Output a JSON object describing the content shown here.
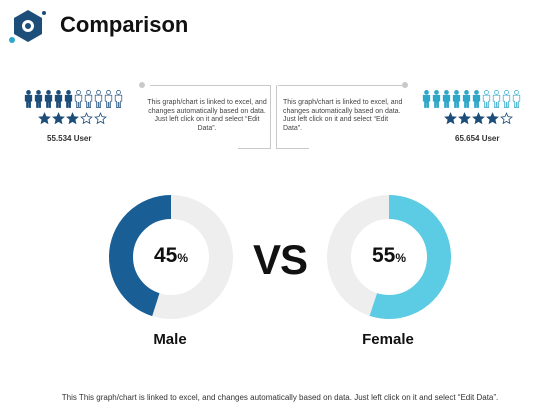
{
  "header": {
    "title": "Comparison"
  },
  "colors": {
    "male": "#1a5e96",
    "female": "#5ccbe4",
    "ring_bg": "#eeeeee",
    "people_male": "#1d4e7a",
    "people_female": "#2ea8c8",
    "star": "#1d4e7a"
  },
  "male": {
    "users_label": "55.534 User",
    "people_filled": 5,
    "people_total": 10,
    "stars_filled": 3,
    "stars_total": 5,
    "percent_value": 45,
    "percent_number": "45",
    "percent_sign": "%",
    "label": "Male",
    "note": "This graph/chart is linked to excel, and changes automatically based on data. Just left click on it and select “Edit Data”."
  },
  "female": {
    "users_label": "65.654 User",
    "people_filled": 6,
    "people_total": 10,
    "stars_filled": 4,
    "stars_total": 5,
    "percent_value": 55,
    "percent_number": "55",
    "percent_sign": "%",
    "label": "Female",
    "note": "This graph/chart is linked to excel, and changes automatically based on data. Just left click on it and select “Edit Data”."
  },
  "vs_label": "VS",
  "footer": {
    "text": "This This graph/chart is linked to excel, and changes automatically based on data. Just left click on it and select “Edit Data”."
  }
}
